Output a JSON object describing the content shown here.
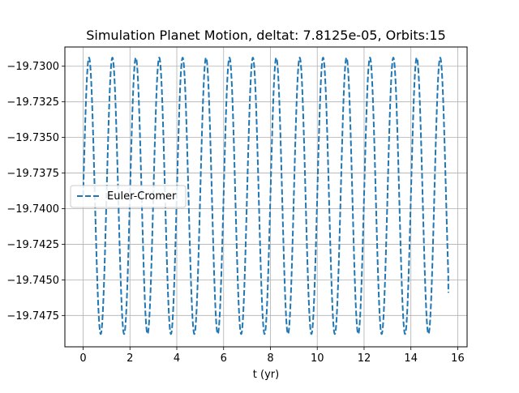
{
  "chart_data": {
    "type": "line",
    "title": "Simulation Planet Motion, deltat: 7.8125e-05, Orbits:15",
    "xlabel": "t (yr)",
    "ylabel": "",
    "xlim": [
      -0.78,
      16.4
    ],
    "ylim": [
      -19.7497,
      -19.72865
    ],
    "grid": true,
    "legend_placement": "center-left",
    "x_ticks": [
      0,
      2,
      4,
      6,
      8,
      10,
      12,
      14,
      16
    ],
    "x_tick_labels": [
      "0",
      "2",
      "4",
      "6",
      "8",
      "10",
      "12",
      "14",
      "16"
    ],
    "y_ticks": [
      -19.73,
      -19.7325,
      -19.735,
      -19.7375,
      -19.74,
      -19.7425,
      -19.745,
      -19.7475
    ],
    "y_tick_labels": [
      "−19.7300",
      "−19.7325",
      "−19.7350",
      "−19.7375",
      "−19.7400",
      "−19.7425",
      "−19.7450",
      "−19.7475"
    ],
    "series": [
      {
        "name": "Euler-Cromer",
        "color": "#1f77b4",
        "line_style": "dashed",
        "t_start": 0,
        "t_end": 15.6,
        "period": 1.0,
        "phase": 0.25,
        "y_center": -19.7391,
        "amplitude": 0.0097,
        "y_start": -19.7391,
        "y_end": -19.7459
      }
    ]
  }
}
